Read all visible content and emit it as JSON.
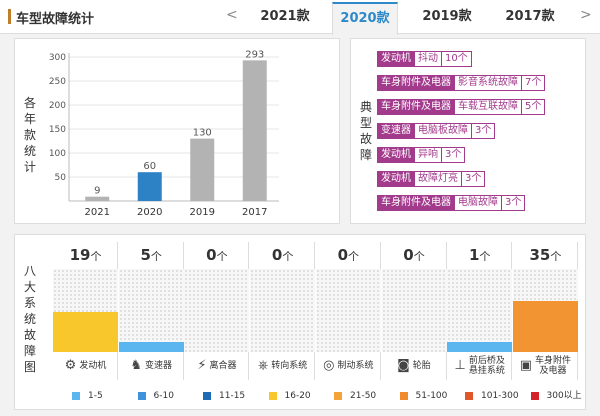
{
  "header": {
    "title": "车型故障统计",
    "prev_arrow": "<",
    "next_arrow": ">",
    "tabs": [
      "2021款",
      "2020款",
      "2019款",
      "2017款"
    ],
    "active_tab": "2020款"
  },
  "year_chart": {
    "side_label": "各年款统计",
    "chart_data": {
      "type": "bar",
      "categories": [
        "2021",
        "2020",
        "2019",
        "2017"
      ],
      "values": [
        9,
        60,
        130,
        293
      ],
      "highlight": "2020",
      "yticks": [
        50,
        100,
        150,
        200,
        250,
        300
      ],
      "ylim": [
        0,
        300
      ],
      "colors": {
        "normal": "#b3b3b3",
        "highlight": "#2c82c4"
      }
    }
  },
  "typical": {
    "side_label": "典型故障",
    "issues": [
      {
        "category": "发动机",
        "detail": "抖动",
        "count": "10个"
      },
      {
        "category": "车身附件及电器",
        "detail": "影音系统故障",
        "count": "7个"
      },
      {
        "category": "车身附件及电器",
        "detail": "车载互联故障",
        "count": "5个"
      },
      {
        "category": "变速器",
        "detail": "电脑板故障",
        "count": "3个"
      },
      {
        "category": "发动机",
        "detail": "异响",
        "count": "3个"
      },
      {
        "category": "发动机",
        "detail": "故障灯亮",
        "count": "3个"
      },
      {
        "category": "车身附件及电器",
        "detail": "电脑故障",
        "count": "3个"
      }
    ]
  },
  "systems": {
    "side_label": "八大系统故障图",
    "unit": "个",
    "items": [
      {
        "name": "发动机",
        "count": 19,
        "fill": 0.48,
        "color": "#f8c72b",
        "icon": "engine-icon",
        "glyph": "⚙"
      },
      {
        "name": "变速器",
        "count": 5,
        "fill": 0.12,
        "color": "#5bb6ef",
        "icon": "gearshift-icon",
        "glyph": "♞"
      },
      {
        "name": "离合器",
        "count": 0,
        "fill": 0,
        "color": "#5bb6ef",
        "icon": "clutch-icon",
        "glyph": "⚡"
      },
      {
        "name": "转向系统",
        "count": 0,
        "fill": 0,
        "color": "#5bb6ef",
        "icon": "steering-wheel-icon",
        "glyph": "⎈"
      },
      {
        "name": "制动系统",
        "count": 0,
        "fill": 0,
        "color": "#5bb6ef",
        "icon": "brake-disc-icon",
        "glyph": "◎"
      },
      {
        "name": "轮胎",
        "count": 0,
        "fill": 0,
        "color": "#5bb6ef",
        "icon": "tire-icon",
        "glyph": "◙"
      },
      {
        "name": "前后桥及悬挂系统",
        "count": 1,
        "fill": 0.12,
        "color": "#5bb6ef",
        "icon": "axle-icon",
        "glyph": "⊥"
      },
      {
        "name": "车身附件及电器",
        "count": 35,
        "fill": 0.62,
        "color": "#f39433",
        "icon": "battery-icon",
        "glyph": "▣"
      }
    ]
  },
  "legend": [
    {
      "label": "1-5",
      "color": "#5bb6ef"
    },
    {
      "label": "6-10",
      "color": "#3f93dc"
    },
    {
      "label": "11-15",
      "color": "#1f6cb5"
    },
    {
      "label": "16-20",
      "color": "#f8c72b"
    },
    {
      "label": "21-50",
      "color": "#f5a23a"
    },
    {
      "label": "51-100",
      "color": "#f08a2a"
    },
    {
      "label": "101-300",
      "color": "#e0572a"
    },
    {
      "label": "300以上",
      "color": "#d5232a"
    }
  ]
}
